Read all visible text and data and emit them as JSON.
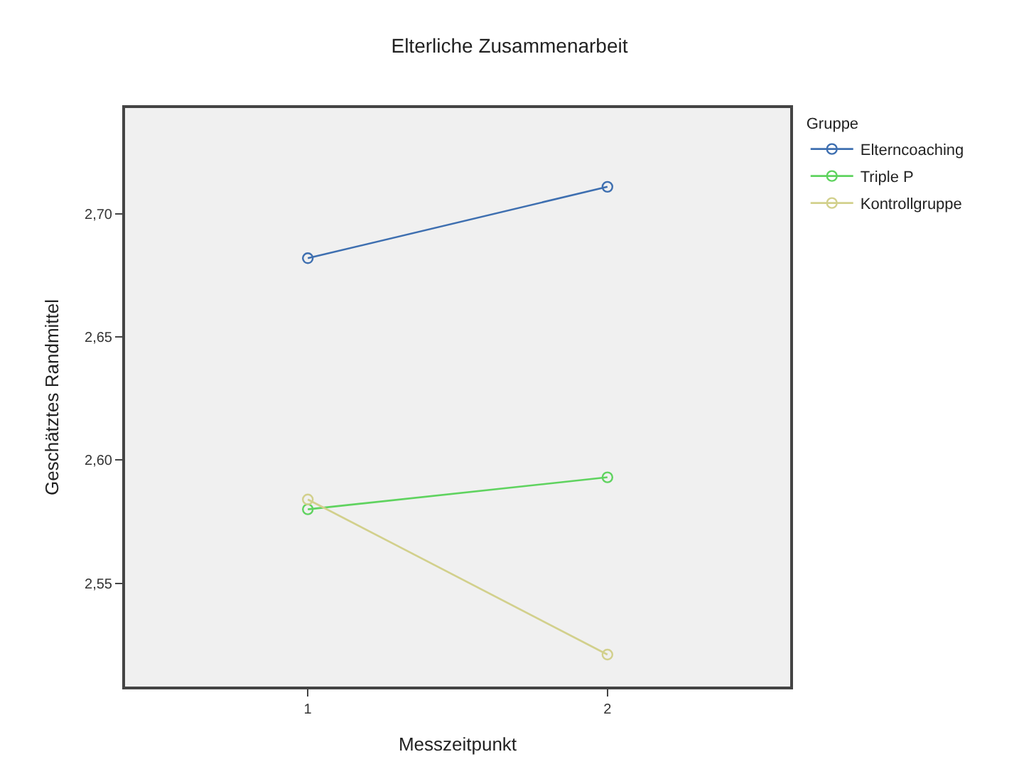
{
  "chart_data": {
    "type": "line",
    "title": "Elterliche Zusammenarbeit",
    "xlabel": "Messzeitpunkt",
    "ylabel": "Geschätztes Randmittel",
    "legend_title": "Gruppe",
    "x": [
      1,
      2
    ],
    "xlim": [
      0.39,
      2.61
    ],
    "xticks": [
      1,
      2
    ],
    "ylim": [
      2.508,
      2.743
    ],
    "yticks": [
      {
        "value": 2.55,
        "label": "2,55"
      },
      {
        "value": 2.6,
        "label": "2,60"
      },
      {
        "value": 2.65,
        "label": "2,65"
      },
      {
        "value": 2.7,
        "label": "2,70"
      }
    ],
    "series": [
      {
        "name": "Elterncoaching",
        "color": "#3e6fb0",
        "values": [
          2.682,
          2.711
        ]
      },
      {
        "name": "Triple P",
        "color": "#5fd35f",
        "values": [
          2.58,
          2.593
        ]
      },
      {
        "name": "Kontrollgruppe",
        "color": "#d2d08c",
        "values": [
          2.584,
          2.521
        ]
      }
    ],
    "marker": "circle",
    "line_style": "solid",
    "grid": false,
    "legend": "top right"
  }
}
